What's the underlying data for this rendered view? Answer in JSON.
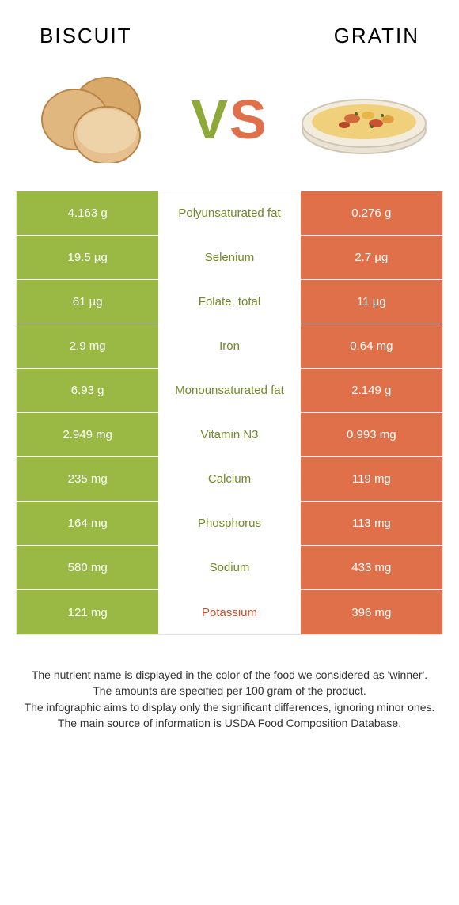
{
  "header": {
    "left_title": "Biscuit",
    "right_title": "Gratin",
    "left_color": "#3a3a3a",
    "right_color": "#3a3a3a"
  },
  "hero": {
    "vs_v_color": "#8ea83a",
    "vs_s_color": "#e0704a"
  },
  "table": {
    "left_bg": "#99b944",
    "right_bg": "#e0704a",
    "left_text_color": "#ffffff",
    "right_text_color": "#ffffff",
    "winner_left_color": "#6f8a2a",
    "winner_right_color": "#c9502a",
    "rows": [
      {
        "left": "4.163 g",
        "label": "Polyunsaturated fat",
        "right": "0.276 g",
        "winner": "left"
      },
      {
        "left": "19.5 µg",
        "label": "Selenium",
        "right": "2.7 µg",
        "winner": "left"
      },
      {
        "left": "61 µg",
        "label": "Folate, total",
        "right": "11 µg",
        "winner": "left"
      },
      {
        "left": "2.9 mg",
        "label": "Iron",
        "right": "0.64 mg",
        "winner": "left"
      },
      {
        "left": "6.93 g",
        "label": "Monounsaturated fat",
        "right": "2.149 g",
        "winner": "left"
      },
      {
        "left": "2.949 mg",
        "label": "Vitamin N3",
        "right": "0.993 mg",
        "winner": "left"
      },
      {
        "left": "235 mg",
        "label": "Calcium",
        "right": "119 mg",
        "winner": "left"
      },
      {
        "left": "164 mg",
        "label": "Phosphorus",
        "right": "113 mg",
        "winner": "left"
      },
      {
        "left": "580 mg",
        "label": "Sodium",
        "right": "433 mg",
        "winner": "left"
      },
      {
        "left": "121 mg",
        "label": "Potassium",
        "right": "396 mg",
        "winner": "right"
      }
    ]
  },
  "footer": {
    "line1": "The nutrient name is displayed in the color of the food we considered as 'winner'.",
    "line2": "The amounts are specified per 100 gram of the product.",
    "line3": "The infographic aims to display only the significant differences, ignoring minor ones.",
    "line4": "The main source of information is USDA Food Composition Database.",
    "text_color": "#333333"
  }
}
